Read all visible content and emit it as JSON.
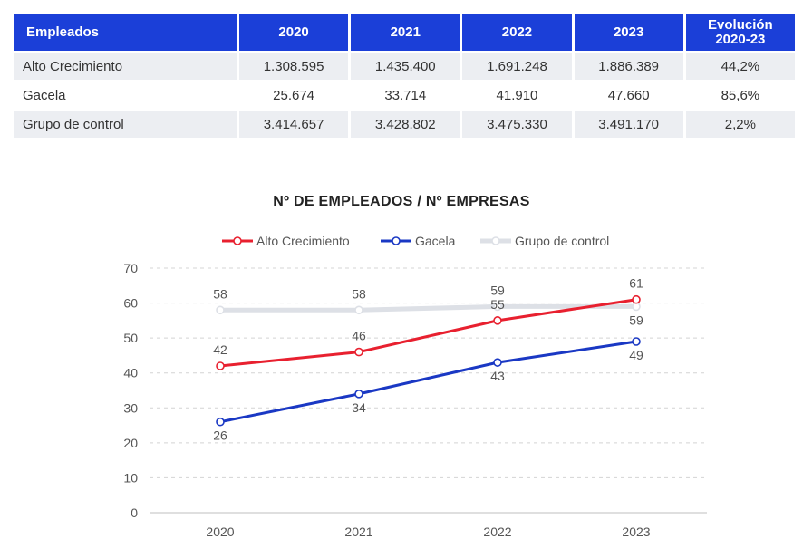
{
  "table": {
    "headers": [
      "Empleados",
      "2020",
      "2021",
      "2022",
      "2023",
      "Evolución 2020-23"
    ],
    "header_evolucion_line1": "Evolución",
    "header_evolucion_line2": "2020-23",
    "rows": [
      {
        "label": "Alto Crecimiento",
        "values": [
          "1.308.595",
          "1.435.400",
          "1.691.248",
          "1.886.389",
          "44,2%"
        ]
      },
      {
        "label": "Gacela",
        "values": [
          "25.674",
          "33.714",
          "41.910",
          "47.660",
          "85,6%"
        ]
      },
      {
        "label": "Grupo de control",
        "values": [
          "3.414.657",
          "3.428.802",
          "3.475.330",
          "3.491.170",
          "2,2%"
        ]
      }
    ],
    "header_color": "#1b3fd8"
  },
  "chart_data": {
    "type": "line",
    "title": "Nº DE EMPLEADOS / Nº EMPRESAS",
    "categories": [
      "2020",
      "2021",
      "2022",
      "2023"
    ],
    "series": [
      {
        "name": "Alto Crecimiento",
        "values": [
          42,
          46,
          55,
          61
        ],
        "labels": [
          "42",
          "46",
          "55",
          "61"
        ],
        "label_pos": [
          "above",
          "above",
          "above",
          "above"
        ],
        "color": "#e8202f"
      },
      {
        "name": "Gacela",
        "values": [
          26,
          34,
          43,
          49
        ],
        "labels": [
          "26",
          "34",
          "43",
          "49"
        ],
        "label_pos": [
          "below",
          "below",
          "below",
          "below"
        ],
        "color": "#1a38c4"
      },
      {
        "name": "Grupo de control",
        "values": [
          58,
          58,
          59,
          59
        ],
        "labels": [
          "58",
          "58",
          "59",
          "59"
        ],
        "label_pos": [
          "above",
          "above",
          "above",
          "below"
        ],
        "color": "#dde0e6"
      }
    ],
    "ylim": [
      0,
      70
    ],
    "yticks": [
      0,
      10,
      20,
      30,
      40,
      50,
      60,
      70
    ],
    "xlabel": "",
    "ylabel": "",
    "grid": "dashed-horizontal",
    "legend": "top-center"
  }
}
